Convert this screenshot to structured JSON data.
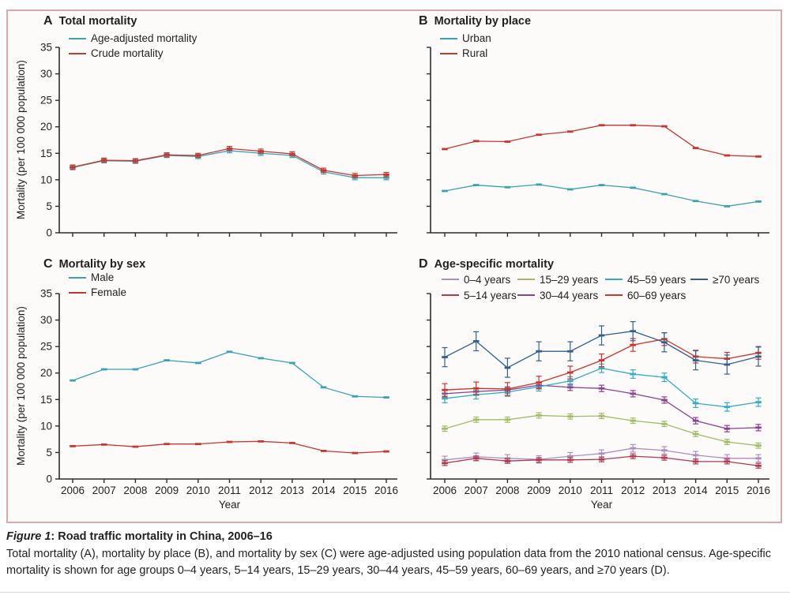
{
  "figure": {
    "caption_label": "Figure 1",
    "caption_title": ": Road traffic mortality in China, 2006–16",
    "caption_body": "Total mortality (A), mortality by place (B), and mortality by sex (C) were age-adjusted using population data from the 2010 national census. Age-specific mortality is shown for age groups 0–4 years, 5–14 years, 15–29 years, 30–44 years, 45–59 years, 60–69 years, and ≥70 years (D)."
  },
  "colors": {
    "teal": "#39A3B4",
    "red": "#C8372E",
    "frame_border": "#D9A9AE",
    "axis": "#2E2A2A",
    "text": "#231F20"
  },
  "chart_data": [
    {
      "type": "line",
      "panel_letter": "A",
      "title": "Total mortality",
      "x": [
        2006,
        2007,
        2008,
        2009,
        2010,
        2011,
        2012,
        2013,
        2014,
        2015,
        2016
      ],
      "xlabel": "",
      "ylabel": "Mortality (per 100 000 population)",
      "ylim": [
        0,
        35
      ],
      "ytick_step": 5,
      "show_y_tick_labels": true,
      "show_x_tick_labels": false,
      "layout": {
        "row": "top",
        "col": "left",
        "legend": "top-left-vertical",
        "grid": false
      },
      "series": [
        {
          "name": "Age-adjusted mortality",
          "color": "#39A3B4",
          "error": 0.4,
          "values": [
            12.3,
            13.6,
            13.5,
            14.6,
            14.4,
            15.5,
            15.0,
            14.6,
            11.5,
            10.4,
            10.4
          ]
        },
        {
          "name": "Crude mortality",
          "color": "#C8372E",
          "error": 0.4,
          "values": [
            12.4,
            13.7,
            13.6,
            14.7,
            14.6,
            15.9,
            15.4,
            14.9,
            11.8,
            10.8,
            11.0
          ]
        }
      ]
    },
    {
      "type": "line",
      "panel_letter": "B",
      "title": "Mortality by place",
      "x": [
        2006,
        2007,
        2008,
        2009,
        2010,
        2011,
        2012,
        2013,
        2014,
        2015,
        2016
      ],
      "xlabel": "",
      "ylabel": "",
      "ylim": [
        0,
        35
      ],
      "ytick_step": 5,
      "show_y_tick_labels": false,
      "show_x_tick_labels": false,
      "layout": {
        "row": "top",
        "col": "right",
        "legend": "top-left-vertical",
        "grid": false
      },
      "series": [
        {
          "name": "Urban",
          "color": "#39A3B4",
          "error": 0,
          "values": [
            7.9,
            9.0,
            8.6,
            9.1,
            8.2,
            9.0,
            8.5,
            7.3,
            6.0,
            5.0,
            5.9
          ]
        },
        {
          "name": "Rural",
          "color": "#C8372E",
          "error": 0,
          "values": [
            15.8,
            17.3,
            17.2,
            18.5,
            19.1,
            20.3,
            20.3,
            20.1,
            16.0,
            14.6,
            14.4
          ]
        }
      ]
    },
    {
      "type": "line",
      "panel_letter": "C",
      "title": "Mortality by sex",
      "x": [
        2006,
        2007,
        2008,
        2009,
        2010,
        2011,
        2012,
        2013,
        2014,
        2015,
        2016
      ],
      "xlabel": "Year",
      "ylabel": "Mortality (per 100 000 population)",
      "ylim": [
        0,
        35
      ],
      "ytick_step": 5,
      "show_y_tick_labels": true,
      "show_x_tick_labels": true,
      "layout": {
        "row": "bottom",
        "col": "left",
        "legend": "top-left-vertical",
        "grid": false
      },
      "series": [
        {
          "name": "Male",
          "color": "#39A3B4",
          "error": 0,
          "values": [
            18.6,
            20.7,
            20.7,
            22.4,
            21.9,
            24.0,
            22.8,
            21.9,
            17.3,
            15.6,
            15.4
          ]
        },
        {
          "name": "Female",
          "color": "#C8372E",
          "error": 0,
          "values": [
            6.2,
            6.5,
            6.1,
            6.6,
            6.6,
            7.0,
            7.1,
            6.8,
            5.3,
            4.9,
            5.2
          ]
        }
      ]
    },
    {
      "type": "line",
      "panel_letter": "D",
      "title": "Age-specific mortality",
      "x": [
        2006,
        2007,
        2008,
        2009,
        2010,
        2011,
        2012,
        2013,
        2014,
        2015,
        2016
      ],
      "xlabel": "Year",
      "ylabel": "",
      "ylim": [
        0,
        35
      ],
      "ytick_step": 5,
      "show_y_tick_labels": false,
      "show_x_tick_labels": true,
      "layout": {
        "row": "bottom",
        "col": "right",
        "legend": "top-grid-2-rows",
        "grid": false
      },
      "series": [
        {
          "name": "0–4 years",
          "color": "#AB8FBE",
          "error": 0.7,
          "values": [
            3.6,
            4.2,
            3.9,
            3.7,
            4.3,
            4.8,
            5.8,
            5.4,
            4.5,
            3.9,
            3.9
          ]
        },
        {
          "name": "5–14 years",
          "color": "#AE3B50",
          "error": 0.45,
          "values": [
            3.0,
            3.9,
            3.4,
            3.6,
            3.6,
            3.7,
            4.3,
            4.0,
            3.3,
            3.3,
            2.5
          ]
        },
        {
          "name": "15–29 years",
          "color": "#A0BC64",
          "error": 0.5,
          "values": [
            9.5,
            11.2,
            11.2,
            12.0,
            11.8,
            11.9,
            11.0,
            10.4,
            8.5,
            7.0,
            6.3
          ]
        },
        {
          "name": "30–44 years",
          "color": "#8C4191",
          "error": 0.6,
          "values": [
            16.1,
            16.5,
            16.8,
            17.7,
            17.3,
            17.1,
            16.1,
            14.9,
            11.0,
            9.5,
            9.7
          ]
        },
        {
          "name": "45–59 years",
          "color": "#32ADC4",
          "error": 0.8,
          "values": [
            15.2,
            15.9,
            16.4,
            17.4,
            18.5,
            20.9,
            19.8,
            19.2,
            14.3,
            13.6,
            14.5
          ]
        },
        {
          "name": "60–69 years",
          "color": "#CC352C",
          "error": 1.2,
          "values": [
            16.8,
            17.1,
            17.0,
            18.2,
            20.1,
            22.4,
            25.3,
            26.4,
            23.1,
            22.7,
            23.8
          ]
        },
        {
          "name": "≥70 years",
          "color": "#30618E",
          "error": 1.8,
          "values": [
            23.0,
            26.0,
            21.0,
            24.1,
            24.1,
            27.1,
            27.9,
            25.8,
            22.4,
            21.6,
            23.1
          ]
        }
      ]
    }
  ]
}
